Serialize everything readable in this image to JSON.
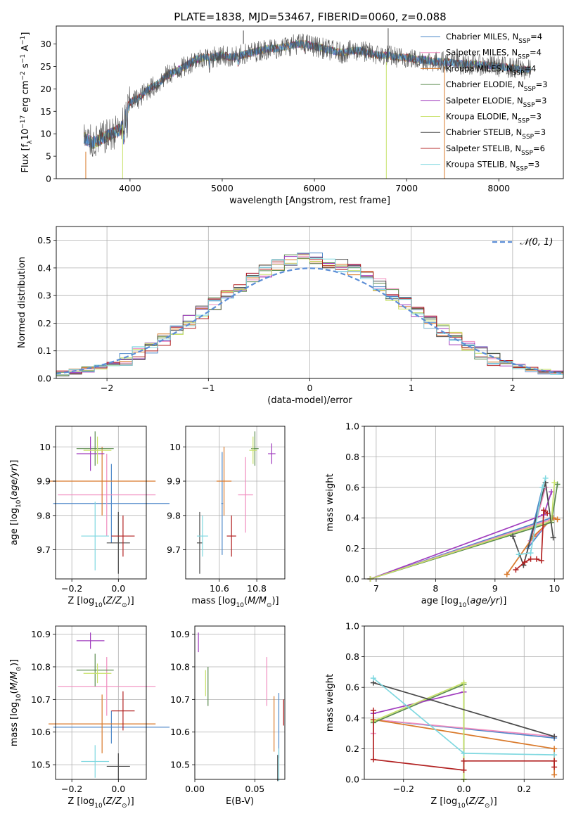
{
  "figure_title": "PLATE=1838, MJD=53467, FIBERID=0060, z=0.088",
  "colors": {
    "Chabrier MILES": "#4e88c9",
    "Salpeter MILES": "#f08cbe",
    "Kroupa MILES": "#d9792a",
    "Chabrier ELODIE": "#5a8a4e",
    "Salpeter ELODIE": "#a03cbe",
    "Kroupa ELODIE": "#c8e26a",
    "Chabrier STELIB": "#4a4a4a",
    "Salpeter STELIB": "#b22222",
    "Kroupa STELIB": "#7fd8e0",
    "gauss": "#5b8dd6"
  },
  "chart_data": [
    {
      "id": "spectrum",
      "type": "line",
      "xlabel": "wavelength [Angstrom, rest frame]",
      "ylabel": "Flux [f_λ10^-17 erg cm^-2 s^-1 A^-1]",
      "xlim": [
        3200,
        8700
      ],
      "ylim": [
        0,
        34
      ],
      "xticks": [
        4000,
        5000,
        6000,
        7000,
        8000
      ],
      "yticks": [
        0,
        5,
        10,
        15,
        20,
        25,
        30
      ],
      "legend_position": "upper right",
      "legend": [
        {
          "label": "Chabrier MILES, N",
          "sub": "SSP",
          "tail": "=4"
        },
        {
          "label": "Salpeter MILES, N",
          "sub": "SSP",
          "tail": "=4"
        },
        {
          "label": "Kroupa MILES, N",
          "sub": "SSP",
          "tail": "=4"
        },
        {
          "label": "Chabrier ELODIE, N",
          "sub": "SSP",
          "tail": "=3"
        },
        {
          "label": "Salpeter ELODIE, N",
          "sub": "SSP",
          "tail": "=3"
        },
        {
          "label": "Kroupa ELODIE, N",
          "sub": "SSP",
          "tail": "=3"
        },
        {
          "label": "Chabrier STELIB, N",
          "sub": "SSP",
          "tail": "=3"
        },
        {
          "label": "Salpeter STELIB, N",
          "sub": "SSP",
          "tail": "=6"
        },
        {
          "label": "Kroupa STELIB, N",
          "sub": "SSP",
          "tail": "=3"
        }
      ],
      "continuum": [
        [
          3500,
          9
        ],
        [
          3600,
          8
        ],
        [
          3700,
          9
        ],
        [
          3800,
          10
        ],
        [
          3900,
          11
        ],
        [
          4000,
          17
        ],
        [
          4100,
          18
        ],
        [
          4200,
          20
        ],
        [
          4300,
          21
        ],
        [
          4400,
          23
        ],
        [
          4500,
          24
        ],
        [
          4600,
          25
        ],
        [
          4700,
          26.5
        ],
        [
          4800,
          27
        ],
        [
          4900,
          27
        ],
        [
          5000,
          27.5
        ],
        [
          5100,
          27
        ],
        [
          5200,
          27.5
        ],
        [
          5300,
          28
        ],
        [
          5400,
          28.5
        ],
        [
          5500,
          29
        ],
        [
          5600,
          29
        ],
        [
          5700,
          29.5
        ],
        [
          5800,
          30
        ],
        [
          5900,
          30
        ],
        [
          6000,
          29.5
        ],
        [
          6100,
          29
        ],
        [
          6200,
          28.5
        ],
        [
          6300,
          28
        ],
        [
          6400,
          28.5
        ],
        [
          6500,
          28.5
        ],
        [
          6600,
          28
        ],
        [
          6700,
          27.5
        ],
        [
          6800,
          27.5
        ],
        [
          6900,
          27
        ],
        [
          7000,
          27
        ],
        [
          7100,
          26.5
        ],
        [
          7200,
          26.5
        ],
        [
          7300,
          26
        ],
        [
          7400,
          26
        ],
        [
          7500,
          25.8
        ],
        [
          7600,
          25.5
        ],
        [
          7700,
          25.5
        ],
        [
          7800,
          25.3
        ],
        [
          7900,
          25.2
        ],
        [
          8000,
          25
        ],
        [
          8100,
          24.8
        ],
        [
          8200,
          24.5
        ],
        [
          8300,
          24.2
        ]
      ],
      "spikes": [
        {
          "x": 3520,
          "from": 0,
          "to": 6,
          "color": "Kroupa MILES"
        },
        {
          "x": 3920,
          "from": 0,
          "to": 12,
          "color": "Kroupa ELODIE"
        },
        {
          "x": 5230,
          "from": 30,
          "to": 33,
          "color": "Chabrier STELIB"
        },
        {
          "x": 6780,
          "from": 0,
          "to": 26,
          "color": "Kroupa ELODIE"
        },
        {
          "x": 6800,
          "from": 26,
          "to": 33.5,
          "color": "Chabrier STELIB"
        },
        {
          "x": 7410,
          "from": 0,
          "to": 25,
          "color": "Kroupa MILES"
        }
      ]
    },
    {
      "id": "residuals",
      "type": "area",
      "xlabel": "(data-model)/error",
      "ylabel": "Normed distribution",
      "xlim": [
        -2.5,
        2.5
      ],
      "ylim": [
        0,
        0.55
      ],
      "xticks": [
        -2,
        -1,
        0,
        1,
        2
      ],
      "xtick_labels": [
        "−2",
        "−1",
        "0",
        "1",
        "2"
      ],
      "yticks": [
        0.0,
        0.1,
        0.2,
        0.3,
        0.4,
        0.5
      ],
      "grid": true,
      "legend_position": "upper right",
      "gauss_label": "𝒩(0, 1)"
    },
    {
      "id": "z-age",
      "type": "scatter",
      "xlabel": "Z [log10(Z/Z⊙)]",
      "ylabel": "age  [log10(age/yr)]",
      "xlim": [
        -0.27,
        0.12
      ],
      "ylim": [
        9.615,
        10.06
      ],
      "xticks": [
        -0.2,
        0.0
      ],
      "xtick_labels": [
        "−0.2",
        "0.0"
      ],
      "yticks": [
        9.7,
        9.8,
        9.9,
        10.0
      ],
      "grid": true,
      "points": [
        {
          "s": "Chabrier MILES",
          "x": -0.03,
          "xerr": 0.25,
          "y": 9.835,
          "yerr": 0.115
        },
        {
          "s": "Salpeter MILES",
          "x": -0.05,
          "xerr": 0.21,
          "y": 9.86,
          "yerr": 0.12
        },
        {
          "s": "Kroupa MILES",
          "x": -0.07,
          "xerr": 0.23,
          "y": 9.9,
          "yerr": 0.1
        },
        {
          "s": "Chabrier ELODIE",
          "x": -0.1,
          "xerr": 0.08,
          "y": 9.995,
          "yerr": 0.05
        },
        {
          "s": "Salpeter ELODIE",
          "x": -0.12,
          "xerr": 0.06,
          "y": 9.98,
          "yerr": 0.05
        },
        {
          "s": "Kroupa ELODIE",
          "x": -0.09,
          "xerr": 0.06,
          "y": 9.99,
          "yerr": 0.04
        },
        {
          "s": "Chabrier STELIB",
          "x": 0.0,
          "xerr": 0.05,
          "y": 9.72,
          "yerr": 0.09
        },
        {
          "s": "Salpeter STELIB",
          "x": 0.02,
          "xerr": 0.05,
          "y": 9.74,
          "yerr": 0.06
        },
        {
          "s": "Kroupa STELIB",
          "x": -0.1,
          "xerr": 0.06,
          "y": 9.74,
          "yerr": 0.1
        }
      ]
    },
    {
      "id": "mass-age",
      "type": "scatter",
      "xlabel": "mass [log10(M/M⊙)]",
      "ylabel": "",
      "xlim": [
        10.42,
        10.95
      ],
      "ylim": [
        9.615,
        10.06
      ],
      "xticks": [
        10.6,
        10.8
      ],
      "yticks": [
        9.7,
        9.8,
        9.9,
        10.0
      ],
      "grid": true,
      "points": [
        {
          "s": "Chabrier MILES",
          "x": 10.615,
          "xerr": 0.005,
          "y": 9.835,
          "yerr": 0.15
        },
        {
          "s": "Salpeter MILES",
          "x": 10.74,
          "xerr": 0.04,
          "y": 9.86,
          "yerr": 0.11
        },
        {
          "s": "Kroupa MILES",
          "x": 10.625,
          "xerr": 0.04,
          "y": 9.9,
          "yerr": 0.1
        },
        {
          "s": "Chabrier ELODIE",
          "x": 10.79,
          "xerr": 0.02,
          "y": 9.995,
          "yerr": 0.05
        },
        {
          "s": "Salpeter ELODIE",
          "x": 10.88,
          "xerr": 0.02,
          "y": 9.98,
          "yerr": 0.03
        },
        {
          "s": "Kroupa ELODIE",
          "x": 10.78,
          "xerr": 0.02,
          "y": 9.99,
          "yerr": 0.04
        },
        {
          "s": "Chabrier STELIB",
          "x": 10.495,
          "xerr": 0.015,
          "y": 9.72,
          "yerr": 0.09
        },
        {
          "s": "Salpeter STELIB",
          "x": 10.665,
          "xerr": 0.025,
          "y": 9.74,
          "yerr": 0.06
        },
        {
          "s": "Kroupa STELIB",
          "x": 10.51,
          "xerr": 0.03,
          "y": 9.74,
          "yerr": 0.06
        }
      ]
    },
    {
      "id": "age-weight",
      "type": "line",
      "xlabel": "age  [log10(age/yr)]",
      "ylabel": "mass weight",
      "xlim": [
        6.8,
        10.15
      ],
      "ylim": [
        0,
        1.0
      ],
      "xticks": [
        7,
        8,
        9,
        10
      ],
      "yticks": [
        0.0,
        0.2,
        0.4,
        0.6,
        0.8,
        1.0
      ],
      "grid": true,
      "series": [
        {
          "s": "Chabrier MILES",
          "x": [
            6.9,
            9.95,
            9.55,
            9.8
          ],
          "y": [
            0.0,
            0.4,
            0.2,
            0.6
          ]
        },
        {
          "s": "Salpeter MILES",
          "x": [
            6.9,
            9.95,
            9.6,
            9.85
          ],
          "y": [
            0.0,
            0.39,
            0.25,
            0.6
          ]
        },
        {
          "s": "Kroupa MILES",
          "x": [
            9.2,
            9.65,
            9.98,
            10.05
          ],
          "y": [
            0.03,
            0.28,
            0.4,
            0.39
          ]
        },
        {
          "s": "Chabrier ELODIE",
          "x": [
            6.9,
            9.95,
            10.05
          ],
          "y": [
            0.0,
            0.37,
            0.62
          ]
        },
        {
          "s": "Salpeter ELODIE",
          "x": [
            6.9,
            9.82,
            9.95
          ],
          "y": [
            0.0,
            0.42,
            0.57
          ]
        },
        {
          "s": "Kroupa ELODIE",
          "x": [
            6.9,
            9.95,
            10.0
          ],
          "y": [
            0.0,
            0.38,
            0.63
          ]
        },
        {
          "s": "Chabrier STELIB",
          "x": [
            9.3,
            9.48,
            9.85,
            9.98
          ],
          "y": [
            0.28,
            0.09,
            0.63,
            0.27
          ]
        },
        {
          "s": "Salpeter STELIB",
          "x": [
            9.35,
            9.5,
            9.6,
            9.7,
            9.78,
            9.82,
            9.88
          ],
          "y": [
            0.06,
            0.11,
            0.13,
            0.13,
            0.12,
            0.45,
            0.43
          ]
        },
        {
          "s": "Kroupa STELIB",
          "x": [
            9.4,
            9.6,
            9.8,
            9.85
          ],
          "y": [
            0.16,
            0.17,
            0.6,
            0.66
          ]
        }
      ]
    },
    {
      "id": "z-mass",
      "type": "scatter",
      "xlabel": "Z [log10(Z/Z⊙)]",
      "ylabel": "mass [log10(M/M⊙)]",
      "xlim": [
        -0.27,
        0.12
      ],
      "ylim": [
        10.455,
        10.925
      ],
      "xticks": [
        -0.2,
        0.0
      ],
      "xtick_labels": [
        "−0.2",
        "0.0"
      ],
      "yticks": [
        10.5,
        10.6,
        10.7,
        10.8,
        10.9
      ],
      "grid": true,
      "points": [
        {
          "s": "Chabrier MILES",
          "x": -0.03,
          "xerr": 0.25,
          "y": 10.615,
          "yerr": 0.05
        },
        {
          "s": "Salpeter MILES",
          "x": -0.05,
          "xerr": 0.21,
          "y": 10.74,
          "yerr": 0.09
        },
        {
          "s": "Kroupa MILES",
          "x": -0.07,
          "xerr": 0.23,
          "y": 10.625,
          "yerr": 0.09
        },
        {
          "s": "Chabrier ELODIE",
          "x": -0.1,
          "xerr": 0.08,
          "y": 10.79,
          "yerr": 0.05
        },
        {
          "s": "Salpeter ELODIE",
          "x": -0.12,
          "xerr": 0.06,
          "y": 10.88,
          "yerr": 0.025
        },
        {
          "s": "Kroupa ELODIE",
          "x": -0.09,
          "xerr": 0.06,
          "y": 10.78,
          "yerr": 0.03
        },
        {
          "s": "Chabrier STELIB",
          "x": 0.0,
          "xerr": 0.05,
          "y": 10.495,
          "yerr": 0.04
        },
        {
          "s": "Salpeter STELIB",
          "x": 0.02,
          "xerr": 0.05,
          "y": 10.665,
          "yerr": 0.06
        },
        {
          "s": "Kroupa STELIB",
          "x": -0.1,
          "xerr": 0.06,
          "y": 10.51,
          "yerr": 0.05
        }
      ]
    },
    {
      "id": "ebv-mass",
      "type": "scatter",
      "xlabel": "E(B-V)",
      "ylabel": "",
      "xlim": [
        0.0,
        0.075
      ],
      "ylim": [
        10.455,
        10.925
      ],
      "xticks": [
        0.0,
        0.05
      ],
      "xtick_labels": [
        "0.00",
        "0.05"
      ],
      "yticks": [
        10.5,
        10.6,
        10.7,
        10.8,
        10.9
      ],
      "grid": true,
      "points": [
        {
          "s": "Chabrier MILES",
          "x": 0.07,
          "y": 10.62,
          "yerr": 0.1
        },
        {
          "s": "Salpeter MILES",
          "x": 0.06,
          "y": 10.755,
          "yerr": 0.075
        },
        {
          "s": "Kroupa MILES",
          "x": 0.066,
          "y": 10.625,
          "yerr": 0.085
        },
        {
          "s": "Chabrier ELODIE",
          "x": 0.011,
          "y": 10.74,
          "yerr": 0.06
        },
        {
          "s": "Salpeter ELODIE",
          "x": 0.003,
          "y": 10.875,
          "yerr": 0.03
        },
        {
          "s": "Kroupa ELODIE",
          "x": 0.009,
          "y": 10.75,
          "yerr": 0.04
        },
        {
          "s": "Chabrier STELIB",
          "x": 0.069,
          "y": 10.49,
          "yerr": 0.04
        },
        {
          "s": "Salpeter STELIB",
          "x": 0.074,
          "y": 10.66,
          "yerr": 0.04
        },
        {
          "s": "Kroupa STELIB",
          "x": 0.07,
          "y": 10.5,
          "yerr": 0.05
        }
      ]
    },
    {
      "id": "z-weight",
      "type": "line",
      "xlabel": "Z [log10(Z/Z⊙)]",
      "ylabel": "mass weight",
      "xlim": [
        -0.33,
        0.33
      ],
      "ylim": [
        0,
        1.0
      ],
      "xticks": [
        -0.2,
        0.0,
        0.2
      ],
      "xtick_labels": [
        "−0.2",
        "0.0",
        "0.2"
      ],
      "yticks": [
        0.0,
        0.2,
        0.4,
        0.6,
        0.8,
        1.0
      ],
      "grid": true,
      "series": [
        {
          "s": "Chabrier MILES",
          "x": [
            -0.3,
            0.3
          ],
          "y": [
            0.39,
            0.27
          ]
        },
        {
          "s": "Salpeter MILES",
          "x": [
            -0.3,
            -0.3,
            0.3
          ],
          "y": [
            0.3,
            0.39,
            0.28
          ]
        },
        {
          "s": "Kroupa MILES",
          "x": [
            -0.3,
            0.3,
            0.3
          ],
          "y": [
            0.39,
            0.2,
            0.03
          ]
        },
        {
          "s": "Chabrier ELODIE",
          "x": [
            -0.3,
            0.0,
            0.0
          ],
          "y": [
            0.37,
            0.62,
            0.0
          ]
        },
        {
          "s": "Salpeter ELODIE",
          "x": [
            -0.3,
            0.0
          ],
          "y": [
            0.43,
            0.57
          ]
        },
        {
          "s": "Kroupa ELODIE",
          "x": [
            -0.3,
            0.0,
            0.0
          ],
          "y": [
            0.38,
            0.63,
            0.0
          ]
        },
        {
          "s": "Chabrier STELIB",
          "x": [
            -0.3,
            0.3
          ],
          "y": [
            0.63,
            0.28
          ]
        },
        {
          "s": "Salpeter STELIB",
          "x": [
            -0.3,
            -0.3,
            0.0,
            0.0,
            0.3,
            0.3
          ],
          "y": [
            0.45,
            0.13,
            0.06,
            0.12,
            0.12,
            0.08
          ]
        },
        {
          "s": "Kroupa STELIB",
          "x": [
            -0.3,
            0.0,
            0.3
          ],
          "y": [
            0.66,
            0.17,
            0.16
          ]
        }
      ]
    }
  ]
}
